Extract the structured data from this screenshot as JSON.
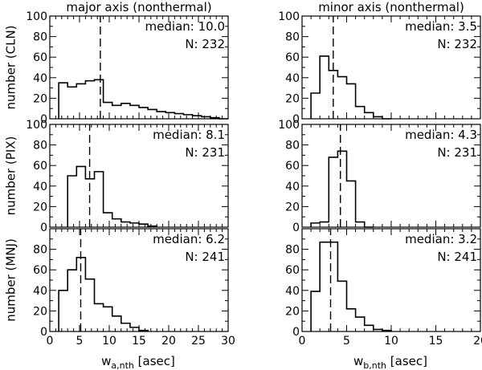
{
  "chart_data": [
    {
      "type": "histogram",
      "column": "major",
      "row": "CLN",
      "title": "major axis (nonthermal)",
      "ylabel": "number (CLN)",
      "xlabel": "",
      "xlim": [
        0,
        30
      ],
      "ylim": [
        0,
        100
      ],
      "xticks": [
        0,
        5,
        10,
        15,
        20,
        25,
        30
      ],
      "yticks": [
        0,
        20,
        40,
        60,
        80,
        100
      ],
      "bins": [
        1.5,
        3,
        4.5,
        6,
        7.5,
        9,
        10.5,
        12,
        13.5,
        15,
        16.5,
        18,
        19.5,
        21,
        22.5,
        24,
        25.5,
        27,
        28.5,
        30
      ],
      "counts": [
        35,
        31,
        34,
        37,
        38,
        16,
        13,
        15,
        13,
        11,
        9,
        7,
        6,
        5,
        4,
        3,
        2,
        1,
        0
      ],
      "median": 10.0,
      "median_x": 8.5,
      "N": 232,
      "median_label": "median: 10.0",
      "n_label": "N: 232"
    },
    {
      "type": "histogram",
      "column": "minor",
      "row": "CLN",
      "title": "minor axis (nonthermal)",
      "ylabel": "",
      "xlabel": "",
      "xlim": [
        0,
        20
      ],
      "ylim": [
        0,
        100
      ],
      "xticks": [
        0,
        5,
        10,
        15,
        20
      ],
      "yticks": [
        0,
        20,
        40,
        60,
        80,
        100
      ],
      "bins": [
        1,
        2,
        3,
        4,
        5,
        6,
        7,
        8,
        9,
        10
      ],
      "counts": [
        25,
        61,
        47,
        41,
        34,
        12,
        6,
        2,
        0
      ],
      "median": 3.5,
      "median_x": 3.5,
      "N": 232,
      "median_label": "median: 3.5",
      "n_label": "N: 232"
    },
    {
      "type": "histogram",
      "column": "major",
      "row": "PIX",
      "ylabel": "number (PIX)",
      "xlabel": "",
      "xlim": [
        0,
        30
      ],
      "ylim": [
        0,
        100
      ],
      "xticks": [
        0,
        5,
        10,
        15,
        20,
        25,
        30
      ],
      "yticks": [
        0,
        20,
        40,
        60,
        80,
        100
      ],
      "bins": [
        3,
        4.5,
        6,
        7.5,
        9,
        10.5,
        12,
        13.5,
        15,
        16.5,
        18
      ],
      "counts": [
        50,
        59,
        47,
        54,
        14,
        8,
        5,
        4,
        3,
        1
      ],
      "median": 8.1,
      "median_x": 6.7,
      "N": 231,
      "median_label": "median: 8.1",
      "n_label": "N: 231"
    },
    {
      "type": "histogram",
      "column": "minor",
      "row": "PIX",
      "ylabel": "",
      "xlabel": "",
      "xlim": [
        0,
        20
      ],
      "ylim": [
        0,
        100
      ],
      "xticks": [
        0,
        5,
        10,
        15,
        20
      ],
      "yticks": [
        0,
        20,
        40,
        60,
        80,
        100
      ],
      "bins": [
        1,
        2,
        3,
        4,
        5,
        6,
        7,
        8
      ],
      "counts": [
        4,
        5,
        68,
        74,
        45,
        5,
        0
      ],
      "median": 4.3,
      "median_x": 4.3,
      "N": 231,
      "median_label": "median: 4.3",
      "n_label": "N: 231"
    },
    {
      "type": "histogram",
      "column": "major",
      "row": "MNJ",
      "ylabel": "number (MNJ)",
      "xlabel": "w_a,nth [asec]",
      "xlim": [
        0,
        30
      ],
      "ylim": [
        0,
        100
      ],
      "xticks": [
        0,
        5,
        10,
        15,
        20,
        25,
        30
      ],
      "yticks": [
        0,
        20,
        40,
        60,
        80
      ],
      "bins": [
        1.5,
        3,
        4.5,
        6,
        7.5,
        9,
        10.5,
        12,
        13.5,
        15,
        16.5
      ],
      "counts": [
        40,
        60,
        72,
        51,
        27,
        24,
        15,
        8,
        4,
        1
      ],
      "median": 6.2,
      "median_x": 5.2,
      "N": 241,
      "median_label": "median: 6.2",
      "n_label": "N: 241"
    },
    {
      "type": "histogram",
      "column": "minor",
      "row": "MNJ",
      "ylabel": "",
      "xlabel": "w_b,nth [asec]",
      "xlim": [
        0,
        20
      ],
      "ylim": [
        0,
        100
      ],
      "xticks": [
        0,
        5,
        10,
        15,
        20
      ],
      "yticks": [
        0,
        20,
        40,
        60,
        80
      ],
      "bins": [
        1,
        2,
        3,
        4,
        5,
        6,
        7,
        8,
        9,
        10
      ],
      "counts": [
        39,
        87,
        87,
        49,
        22,
        14,
        6,
        2,
        1
      ],
      "median": 3.2,
      "median_x": 3.2,
      "N": 241,
      "median_label": "median: 3.2",
      "n_label": "N: 241"
    }
  ],
  "axis_labels": {
    "xlabel_left": {
      "base": "w",
      "sub": "a,nth",
      "unit": " [asec]"
    },
    "xlabel_right": {
      "base": "w",
      "sub": "b,nth",
      "unit": " [asec]"
    }
  }
}
